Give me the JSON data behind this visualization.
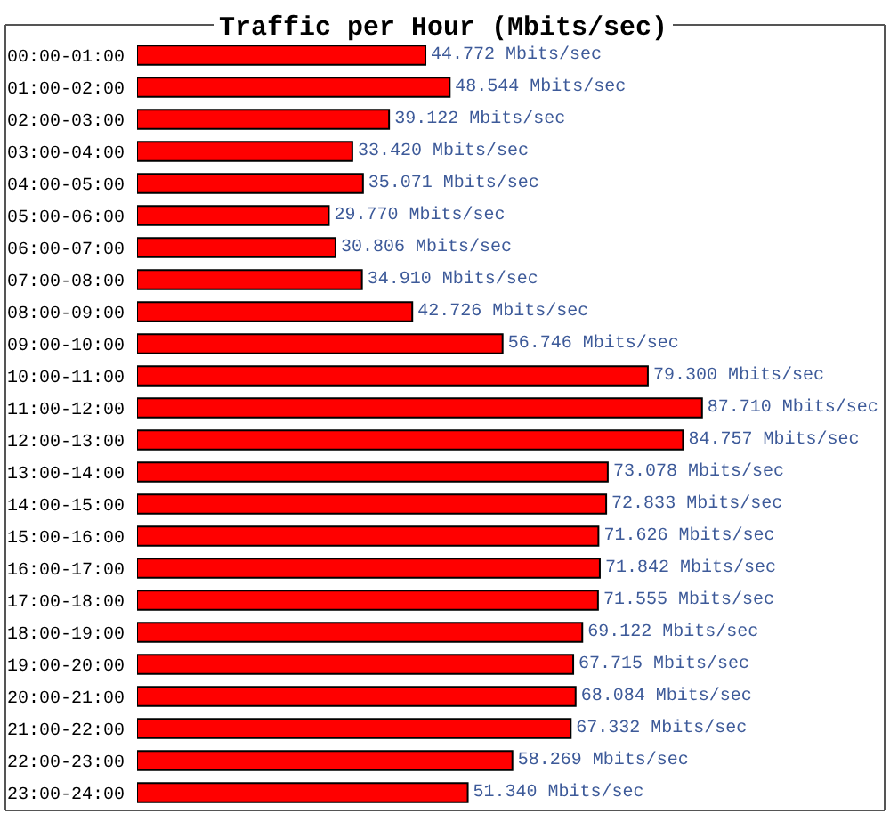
{
  "chart_data": {
    "type": "bar",
    "orientation": "horizontal",
    "title": "Traffic per Hour (Mbits/sec)",
    "categories": [
      "00:00-01:00",
      "01:00-02:00",
      "02:00-03:00",
      "03:00-04:00",
      "04:00-05:00",
      "05:00-06:00",
      "06:00-07:00",
      "07:00-08:00",
      "08:00-09:00",
      "09:00-10:00",
      "10:00-11:00",
      "11:00-12:00",
      "12:00-13:00",
      "13:00-14:00",
      "14:00-15:00",
      "15:00-16:00",
      "16:00-17:00",
      "17:00-18:00",
      "18:00-19:00",
      "19:00-20:00",
      "20:00-21:00",
      "21:00-22:00",
      "22:00-23:00",
      "23:00-24:00"
    ],
    "values": [
      44.772,
      48.544,
      39.122,
      33.42,
      35.071,
      29.77,
      30.806,
      34.91,
      42.726,
      56.746,
      79.3,
      87.71,
      84.757,
      73.078,
      72.833,
      71.626,
      71.842,
      71.555,
      69.122,
      67.715,
      68.084,
      67.332,
      58.269,
      51.34
    ],
    "value_labels": [
      "44.772 Mbits/sec",
      "48.544 Mbits/sec",
      "39.122 Mbits/sec",
      "33.420 Mbits/sec",
      "35.071 Mbits/sec",
      "29.770 Mbits/sec",
      "30.806 Mbits/sec",
      "34.910 Mbits/sec",
      "42.726 Mbits/sec",
      "56.746 Mbits/sec",
      "79.300 Mbits/sec",
      "87.710 Mbits/sec",
      "84.757 Mbits/sec",
      "73.078 Mbits/sec",
      "72.833 Mbits/sec",
      "71.626 Mbits/sec",
      "71.842 Mbits/sec",
      "71.555 Mbits/sec",
      "69.122 Mbits/sec",
      "67.715 Mbits/sec",
      "68.084 Mbits/sec",
      "67.332 Mbits/sec",
      "58.269 Mbits/sec",
      "51.340 Mbits/sec"
    ],
    "color": "#ff0000"
  }
}
